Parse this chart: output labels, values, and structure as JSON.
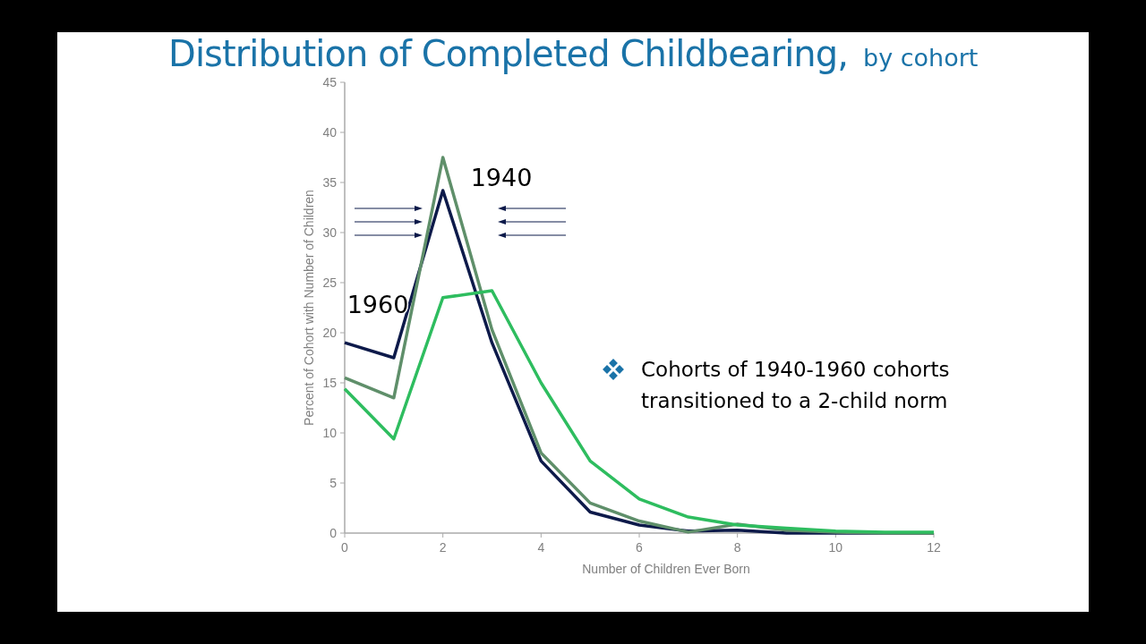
{
  "chart_data": {
    "type": "line",
    "title": "Distribution of Completed Childbearing,",
    "subtitle": "by cohort",
    "xlabel": "Number of Children Ever Born",
    "ylabel": "Percent of Cohort with Number of Children",
    "x": [
      0,
      1,
      2,
      3,
      4,
      5,
      6,
      7,
      8,
      9,
      10,
      11,
      12
    ],
    "series": [
      {
        "color": "#0d1a4a",
        "values": [
          19.0,
          17.5,
          34.2,
          19.0,
          7.2,
          2.1,
          0.8,
          0.2,
          0.3,
          0,
          0,
          0,
          0
        ]
      },
      {
        "color": "#5f8f6a",
        "values": [
          15.5,
          13.5,
          37.5,
          20.3,
          8.0,
          3.0,
          1.2,
          0.1,
          0.9,
          0.3,
          0.1,
          0,
          0
        ]
      },
      {
        "color": "#2ebd5f",
        "values": [
          14.4,
          9.4,
          23.5,
          24.2,
          15.0,
          7.2,
          3.4,
          1.6,
          0.8,
          0.5,
          0.2,
          0.1,
          0.1
        ]
      }
    ],
    "annotations": [
      "1940",
      "1960",
      "Cohorts of 1940-1960 cohorts transitioned to a 2-child norm"
    ],
    "xlim": [
      0,
      12
    ],
    "ylim": [
      0,
      45
    ],
    "xticks": [
      0,
      2,
      4,
      6,
      8,
      10,
      12
    ],
    "yticks": [
      0,
      5,
      10,
      15,
      20,
      25,
      30,
      35,
      40,
      45
    ],
    "grid": false,
    "marker": "none",
    "line_style": "solid"
  }
}
